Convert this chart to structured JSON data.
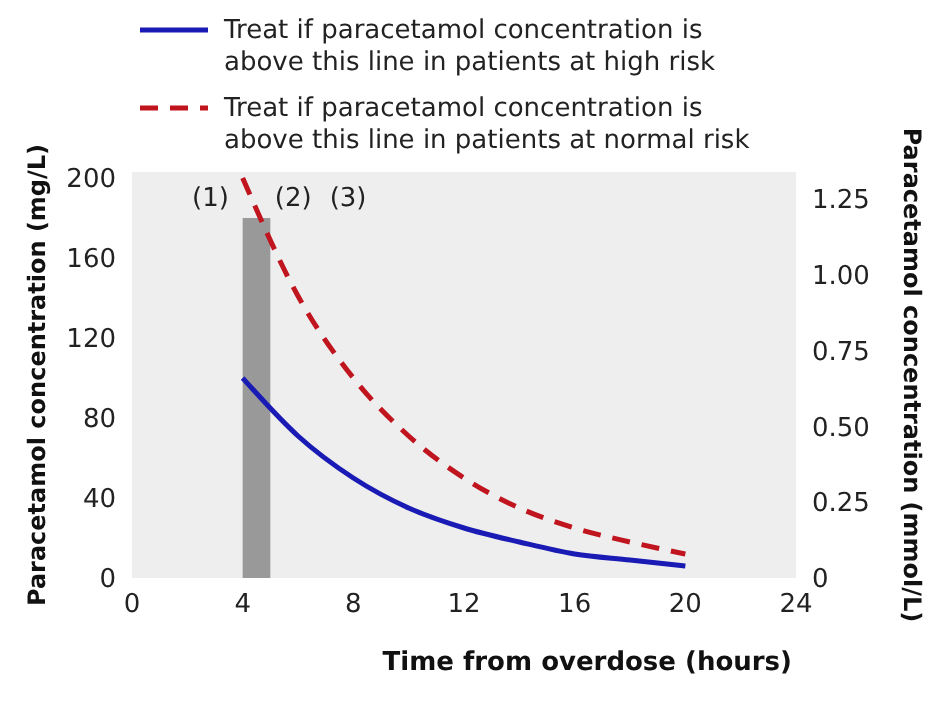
{
  "chart_data": {
    "type": "line",
    "xlabel": "Time from overdose (hours)",
    "ylabel": "Paracetamol concentration (mg/L)",
    "y2label": "Paracetamol concentration (mmol/L)",
    "x": [
      4,
      6,
      8,
      10,
      12,
      14,
      16,
      18,
      20
    ],
    "series": [
      {
        "name": "Treat if paracetamol concentration is above this line in patients at high risk",
        "color": "#1a1ab4",
        "line_style": "solid",
        "values": [
          100,
          71,
          50,
          35,
          25,
          18,
          12,
          9,
          6
        ]
      },
      {
        "name": "Treat if paracetamol concentration is above this line in patients at normal risk",
        "color": "#c0141e",
        "line_style": "dashed",
        "values": [
          200,
          141,
          100,
          71,
          50,
          35,
          25,
          18,
          12
        ]
      },
      {
        "type": "bar",
        "color": "#999999",
        "x": [
          4.5
        ],
        "values": [
          180
        ]
      }
    ],
    "xlim": [
      0,
      24
    ],
    "xticks": [
      0,
      4,
      8,
      12,
      16,
      20,
      24
    ],
    "ylim": [
      0,
      203
    ],
    "yticks": [
      0,
      40,
      80,
      120,
      160,
      200
    ],
    "y2lim": [
      0,
      1.34
    ],
    "y2ticks": [
      0,
      0.25,
      {
        "value": 0.5,
        "label": "0.50"
      },
      0.75,
      {
        "value": 1,
        "label": "1.00"
      },
      1.25
    ],
    "annotations": [
      "(1)",
      "(2)",
      "(3)"
    ],
    "grid": false,
    "legend": "top",
    "marker": "none"
  }
}
